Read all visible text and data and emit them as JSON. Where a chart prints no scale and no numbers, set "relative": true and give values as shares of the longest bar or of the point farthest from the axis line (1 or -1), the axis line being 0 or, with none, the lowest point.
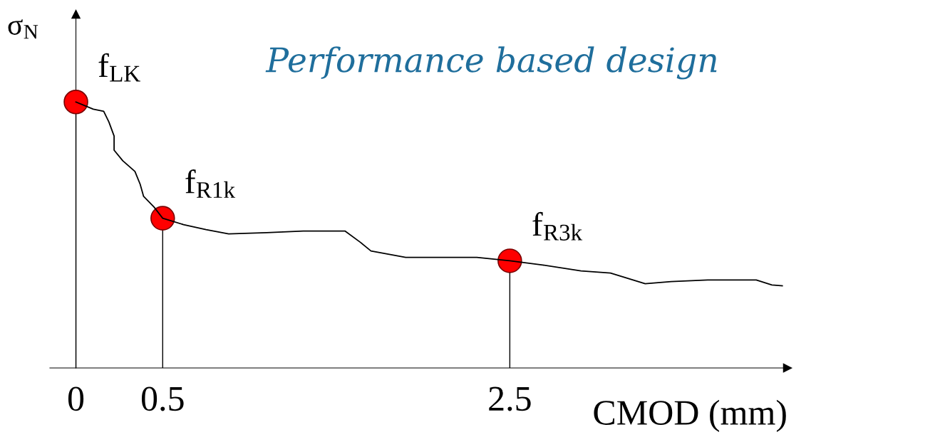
{
  "chart_data": {
    "type": "line",
    "title": "Performance based design",
    "xlabel": "CMOD (mm)",
    "ylabel": "σ$_{N}$",
    "relative": true,
    "xlim": [
      -0.15,
      4.1
    ],
    "xticks": [
      0,
      0.5,
      2.5
    ],
    "grid": false,
    "legend": false,
    "series": [
      {
        "color": "#000000",
        "marker": "none",
        "line_style": "solid",
        "x": [
          0,
          0.1,
          0.16,
          0.19,
          0.22,
          0.22,
          0.27,
          0.34,
          0.37,
          0.39,
          0.45,
          0.5,
          0.62,
          0.75,
          0.88,
          1.1,
          1.31,
          1.55,
          1.64,
          1.7,
          1.9,
          2.31,
          2.5,
          2.69,
          2.91,
          3.08,
          3.28,
          3.43,
          3.64,
          3.92,
          4.01,
          4.07
        ],
        "values": [
          1,
          0.973,
          0.965,
          0.925,
          0.872,
          0.819,
          0.779,
          0.739,
          0.691,
          0.645,
          0.605,
          0.563,
          0.539,
          0.52,
          0.504,
          0.509,
          0.515,
          0.515,
          0.472,
          0.44,
          0.416,
          0.416,
          0.403,
          0.387,
          0.365,
          0.357,
          0.317,
          0.325,
          0.331,
          0.331,
          0.312,
          0.309
        ]
      },
      {
        "type": "lollipop",
        "color": "#ff0000",
        "marker": "circle",
        "x": [
          0,
          0.5,
          2.5
        ],
        "values": [
          1,
          0.563,
          0.403
        ]
      }
    ],
    "annotations": [
      {
        "text": "f$_{LK}$",
        "x": 0,
        "y": 1
      },
      {
        "text": "f$_{R1k}$",
        "x": 0.5,
        "y": 0.563
      },
      {
        "text": "f$_{R3k}$",
        "x": 2.5,
        "y": 0.403
      }
    ]
  }
}
